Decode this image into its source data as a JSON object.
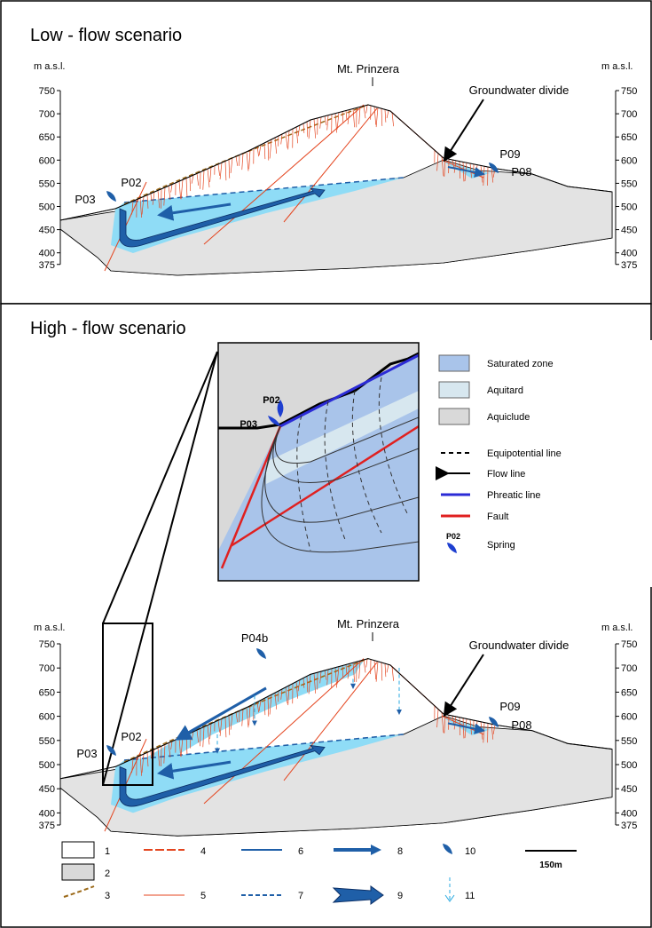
{
  "panels": [
    {
      "title": "Low - flow scenario",
      "axis_label_left": "m a.s.l.",
      "axis_label_right": "m a.s.l.",
      "ticks": [
        "750",
        "700",
        "650",
        "600",
        "550",
        "500",
        "450",
        "400",
        "375"
      ],
      "peak": "Mt. Prinzera",
      "divide": "Groundwater divide",
      "springs": [
        "P02",
        "P03",
        "P09",
        "P08"
      ]
    },
    {
      "title": "High - flow scenario",
      "axis_label_left": "m a.s.l.",
      "axis_label_right": "m a.s.l.",
      "ticks": [
        "750",
        "700",
        "650",
        "600",
        "550",
        "500",
        "450",
        "400",
        "375"
      ],
      "peak": "Mt. Prinzera",
      "divide": "Groundwater divide",
      "springs": [
        "P04b",
        "P02",
        "P03",
        "P09",
        "P08"
      ]
    }
  ],
  "inset": {
    "springs": [
      "P02",
      "P03"
    ]
  },
  "inset_legend": [
    "Saturated zone",
    "Aquitard",
    "Aquiclude",
    "Equipotential line",
    "Flow line",
    "Phreatic line",
    "Fault",
    "Spring"
  ],
  "spring_icon_label": "P02",
  "legend": [
    "1",
    "2",
    "3",
    "4",
    "5",
    "6",
    "7",
    "8",
    "9",
    "10",
    "11"
  ],
  "scale_bar": "150m"
}
